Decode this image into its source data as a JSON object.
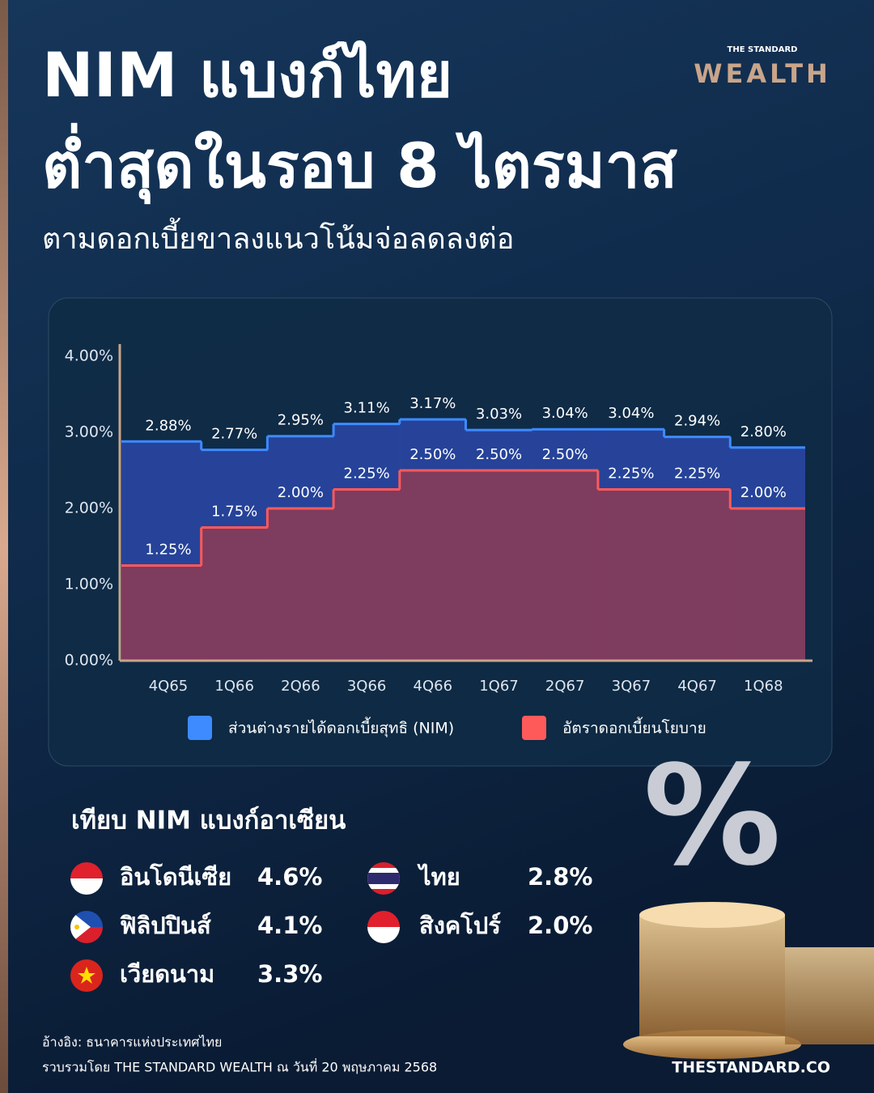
{
  "header": {
    "title": [
      "NIM แบงก์ไทย",
      "ต่ำสุดในรอบ 8 ไตรมาส"
    ],
    "subtitle": "ตามดอกเบี้ยขาลงแนวโน้มจ่อลดลงต่อ",
    "brand_small": "THE STANDARD",
    "brand": "WEALTH"
  },
  "chart_data": {
    "type": "step-area",
    "categories": [
      "4Q65",
      "1Q66",
      "2Q66",
      "3Q66",
      "4Q66",
      "1Q67",
      "2Q67",
      "3Q67",
      "4Q67",
      "1Q68"
    ],
    "series": [
      {
        "name": "ส่วนต่างรายได้ดอกเบี้ยสุทธิ (NIM)",
        "color": "#3d8bff",
        "values": [
          2.88,
          2.77,
          2.95,
          3.11,
          3.17,
          3.03,
          3.04,
          3.04,
          2.94,
          2.8
        ],
        "value_labels": [
          "2.88%",
          "2.77%",
          "2.95%",
          "3.11%",
          "3.17%",
          "3.03%",
          "3.04%",
          "3.04%",
          "2.94%",
          "2.80%"
        ]
      },
      {
        "name": "อัตราดอกเบี้ยนโยบาย",
        "color": "#ff5a5a",
        "values": [
          1.25,
          1.75,
          2.0,
          2.25,
          2.5,
          2.5,
          2.5,
          2.25,
          2.25,
          2.0
        ],
        "value_labels": [
          "1.25%",
          "1.75%",
          "2.00%",
          "2.25%",
          "2.50%",
          "2.50%",
          "2.50%",
          "2.25%",
          "2.25%",
          "2.00%"
        ]
      }
    ],
    "ylim": [
      0,
      4
    ],
    "yticks": [
      {
        "value": 0,
        "label": "0.00%"
      },
      {
        "value": 1,
        "label": "1.00%"
      },
      {
        "value": 2,
        "label": "2.00%"
      },
      {
        "value": 3,
        "label": "3.00%"
      },
      {
        "value": 4,
        "label": "4.00%"
      }
    ]
  },
  "comparison": {
    "title": "เทียบ NIM แบงก์อาเซียน",
    "items": [
      {
        "country": "อินโดนีเซีย",
        "value": "4.6%"
      },
      {
        "country": "ฟิลิปปินส์",
        "value": "4.1%"
      },
      {
        "country": "เวียดนาม",
        "value": "3.3%"
      },
      {
        "country": "ไทย",
        "value": "2.8%"
      },
      {
        "country": "สิงคโปร์",
        "value": "2.0%"
      }
    ]
  },
  "footer": {
    "source": "อ้างอิง: ธนาคารแห่งประเทศไทย",
    "compiled": "รวบรวมโดย THE STANDARD WEALTH ณ วันที่ 20 พฤษภาคม 2568",
    "site": "THESTANDARD.CO"
  }
}
